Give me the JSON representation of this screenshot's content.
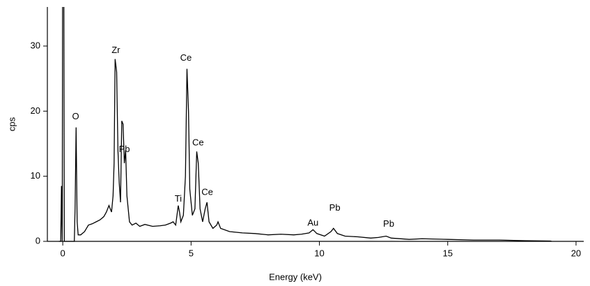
{
  "chart_data": {
    "type": "line",
    "x_label": "Energy (keV)",
    "y_label": "cps",
    "color": "#000000",
    "xlim": [
      -0.6,
      20.3
    ],
    "ylim": [
      0,
      36
    ],
    "xticks": [
      0,
      5,
      10,
      15,
      20
    ],
    "yticks": [
      0,
      10,
      20,
      30
    ],
    "x": [
      -0.15,
      -0.08,
      -0.05,
      -0.02,
      0.0,
      0.03,
      0.06,
      0.1,
      0.3,
      0.45,
      0.48,
      0.52,
      0.56,
      0.6,
      0.7,
      0.85,
      1.0,
      1.15,
      1.3,
      1.45,
      1.6,
      1.7,
      1.8,
      1.9,
      1.96,
      2.0,
      2.04,
      2.1,
      2.15,
      2.2,
      2.25,
      2.3,
      2.35,
      2.4,
      2.45,
      2.5,
      2.6,
      2.7,
      2.85,
      3.0,
      3.2,
      3.5,
      3.8,
      4.0,
      4.2,
      4.3,
      4.4,
      4.5,
      4.55,
      4.6,
      4.7,
      4.78,
      4.84,
      4.9,
      4.95,
      5.05,
      5.15,
      5.22,
      5.28,
      5.35,
      5.45,
      5.55,
      5.62,
      5.7,
      5.85,
      6.0,
      6.05,
      6.15,
      6.5,
      7.0,
      7.5,
      8.0,
      8.5,
      9.0,
      9.3,
      9.6,
      9.75,
      9.9,
      10.2,
      10.45,
      10.55,
      10.7,
      11.0,
      11.5,
      12.0,
      12.3,
      12.6,
      12.8,
      13.5,
      14.0,
      15.0,
      16.0,
      17.0,
      18.0,
      19.0,
      19.05
    ],
    "values": [
      0,
      0,
      8.5,
      0,
      60,
      60,
      0,
      0,
      0,
      0,
      5,
      17.5,
      3,
      1,
      1,
      1.5,
      2.5,
      2.7,
      3,
      3.3,
      3.8,
      4.5,
      5.5,
      4.5,
      7,
      12,
      28,
      26,
      14,
      9,
      6,
      18.5,
      18,
      12,
      14,
      7,
      3,
      2.5,
      2.8,
      2.3,
      2.6,
      2.3,
      2.4,
      2.5,
      2.8,
      3,
      2.5,
      5.5,
      4.5,
      3,
      4,
      10,
      26.5,
      20,
      8,
      4,
      5,
      13.8,
      12,
      5,
      3,
      5,
      6,
      3,
      2,
      2.5,
      3,
      2,
      1.5,
      1.3,
      1.2,
      1.0,
      1.1,
      1.0,
      1.1,
      1.3,
      1.8,
      1.2,
      0.8,
      1.5,
      2.0,
      1.2,
      0.8,
      0.7,
      0.5,
      0.6,
      0.8,
      0.5,
      0.3,
      0.4,
      0.3,
      0.2,
      0.2,
      0.1,
      0.05,
      0
    ],
    "annotations": [
      {
        "text": "O",
        "x": 0.5,
        "y": 19.1
      },
      {
        "text": "Zr",
        "x": 2.07,
        "y": 29.3
      },
      {
        "text": "Pb",
        "x": 2.4,
        "y": 14.1
      },
      {
        "text": "Ce",
        "x": 4.8,
        "y": 28.1
      },
      {
        "text": "Ti",
        "x": 4.5,
        "y": 6.5
      },
      {
        "text": "Ce",
        "x": 5.27,
        "y": 15.1
      },
      {
        "text": "Ce",
        "x": 5.63,
        "y": 7.5
      },
      {
        "text": "Au",
        "x": 9.75,
        "y": 2.8
      },
      {
        "text": "Pb",
        "x": 10.6,
        "y": 5.1
      },
      {
        "text": "Pb",
        "x": 12.7,
        "y": 2.6
      }
    ]
  }
}
